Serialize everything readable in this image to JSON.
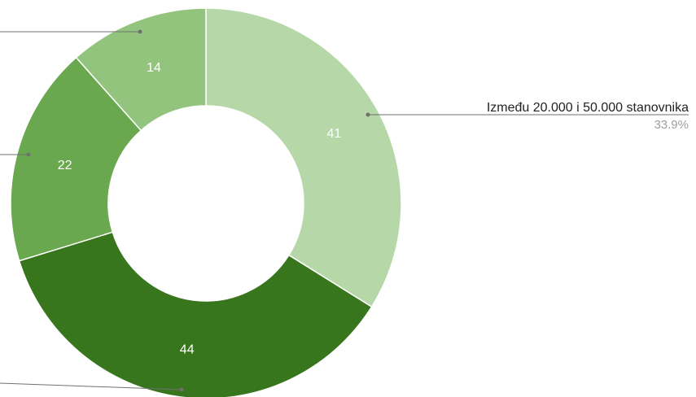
{
  "chart_data": {
    "type": "pie",
    "donut": true,
    "colors": [
      "#b6d7a8",
      "#38761d",
      "#6aa84f",
      "#93c47d"
    ],
    "slices": [
      {
        "label": "Između 20.000 i 50.000 stanovnika",
        "value": 41,
        "percent": "33.9%"
      },
      {
        "label": "",
        "value": 44,
        "percent": ""
      },
      {
        "label": "",
        "value": 22,
        "percent": ""
      },
      {
        "label": "",
        "value": 14,
        "percent": ""
      }
    ]
  }
}
